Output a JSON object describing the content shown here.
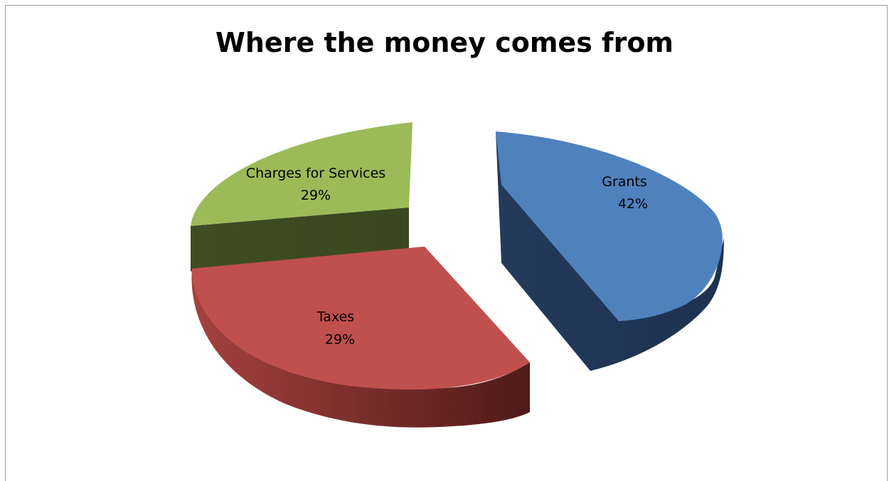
{
  "chart_data": {
    "type": "pie",
    "title": "Where the money comes from",
    "slices": [
      {
        "label": "Grants",
        "value": 42,
        "percent_label": "42%",
        "color": "#4F81BD"
      },
      {
        "label": "Taxes",
        "value": 29,
        "percent_label": "29%",
        "color": "#C0504D"
      },
      {
        "label": "Charges for Services",
        "value": 29,
        "percent_label": "29%",
        "color": "#9BBB59"
      }
    ],
    "style": "3d-exploded",
    "legend": "none"
  }
}
